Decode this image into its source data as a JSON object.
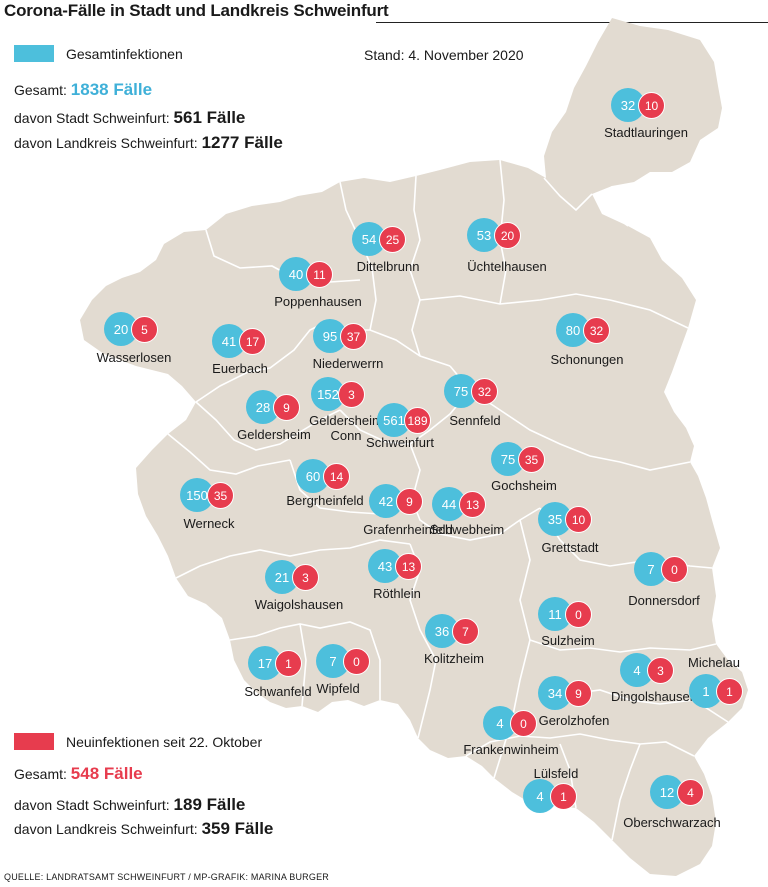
{
  "title": "Corona-Fälle in Stadt und Landkreis Schweinfurt",
  "stand": "Stand: 4. November 2020",
  "colors": {
    "total": "#4dbfdc",
    "new": "#e73c4e",
    "land": "#e2dbd1",
    "border": "#ffffff"
  },
  "legend_total": {
    "label": "Gesamtinfektionen",
    "gesamt_prefix": "Gesamt:",
    "gesamt_value": "1838 Fälle",
    "stadt_prefix": "davon Stadt Schweinfurt:",
    "stadt_value": "561 Fälle",
    "land_prefix": "davon Landkreis Schweinfurt:",
    "land_value": "1277 Fälle"
  },
  "legend_new": {
    "label": "Neuinfektionen seit 22. Oktober",
    "gesamt_prefix": "Gesamt:",
    "gesamt_value": "548 Fälle",
    "stadt_prefix": "davon Stadt Schweinfurt:",
    "stadt_value": "189 Fälle",
    "land_prefix": "davon Landkreis Schweinfurt:",
    "land_value": "359 Fälle"
  },
  "source": "QUELLE: LANDRATSAMT SCHWEINFURT / MP-GRAFIK: MARINA BURGER",
  "places": [
    {
      "name": "Stadtlauringen",
      "total": "32",
      "new": "10"
    },
    {
      "name": "Dittelbrunn",
      "total": "54",
      "new": "25"
    },
    {
      "name": "Üchtelhausen",
      "total": "53",
      "new": "20"
    },
    {
      "name": "Poppenhausen",
      "total": "40",
      "new": "11"
    },
    {
      "name": "Wasserlosen",
      "total": "20",
      "new": "5"
    },
    {
      "name": "Euerbach",
      "total": "41",
      "new": "17"
    },
    {
      "name": "Niederwerrn",
      "total": "95",
      "new": "37"
    },
    {
      "name": "Schonungen",
      "total": "80",
      "new": "32"
    },
    {
      "name": "Geldersheim",
      "total": "28",
      "new": "9"
    },
    {
      "name": "Geldersheim Conn",
      "total": "152",
      "new": "3"
    },
    {
      "name": "Schweinfurt",
      "total": "561",
      "new": "189"
    },
    {
      "name": "Sennfeld",
      "total": "75",
      "new": "32"
    },
    {
      "name": "Gochsheim",
      "total": "75",
      "new": "35"
    },
    {
      "name": "Werneck",
      "total": "150",
      "new": "35"
    },
    {
      "name": "Bergrheinfeld",
      "total": "60",
      "new": "14"
    },
    {
      "name": "Grafenrheinfeld",
      "total": "42",
      "new": "9"
    },
    {
      "name": "Schwebheim",
      "total": "44",
      "new": "13"
    },
    {
      "name": "Grettstadt",
      "total": "35",
      "new": "10"
    },
    {
      "name": "Waigolshausen",
      "total": "21",
      "new": "3"
    },
    {
      "name": "Röthlein",
      "total": "43",
      "new": "13"
    },
    {
      "name": "Donnersdorf",
      "total": "7",
      "new": "0"
    },
    {
      "name": "Sulzheim",
      "total": "11",
      "new": "0"
    },
    {
      "name": "Kolitzheim",
      "total": "36",
      "new": "7"
    },
    {
      "name": "Schwanfeld",
      "total": "17",
      "new": "1"
    },
    {
      "name": "Wipfeld",
      "total": "7",
      "new": "0"
    },
    {
      "name": "Dingolshausen",
      "total": "4",
      "new": "3"
    },
    {
      "name": "Michelau",
      "total": "1",
      "new": "1"
    },
    {
      "name": "Gerolzhofen",
      "total": "34",
      "new": "9"
    },
    {
      "name": "Frankenwinheim",
      "total": "4",
      "new": "0"
    },
    {
      "name": "Lülsfeld",
      "total": "4",
      "new": "1"
    },
    {
      "name": "Oberschwarzach",
      "total": "12",
      "new": "4"
    }
  ]
}
